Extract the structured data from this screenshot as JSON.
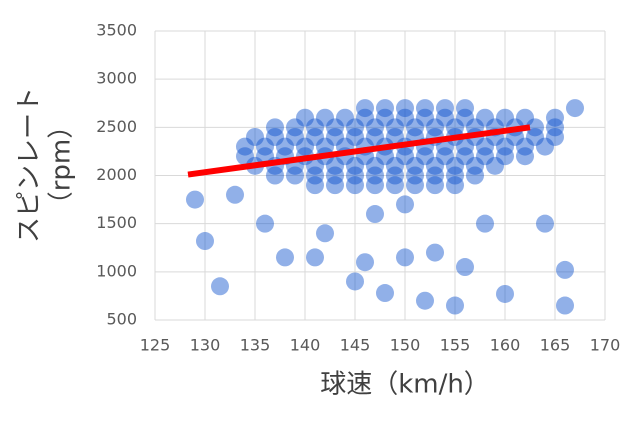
{
  "chart_data": {
    "type": "scatter",
    "x_label": "球速（km/h）",
    "y_label": [
      "スピンレート",
      "（rpm）"
    ],
    "xlim": [
      125,
      170
    ],
    "xticks": [
      125,
      130,
      135,
      140,
      145,
      150,
      155,
      160,
      165,
      170
    ],
    "ylim": [
      500,
      3500
    ],
    "yticks": [
      500,
      1000,
      1500,
      2000,
      2500,
      3000,
      3500
    ],
    "grid": true,
    "color": "#0a4fcc",
    "x": [
      146,
      148,
      150,
      152,
      154,
      156,
      140,
      142,
      144,
      146,
      148,
      150,
      152,
      154,
      156,
      158,
      160,
      162,
      137,
      139,
      141,
      143,
      145,
      147,
      149,
      151,
      153,
      155,
      157,
      159,
      161,
      163,
      165,
      135,
      137,
      139,
      141,
      143,
      145,
      147,
      149,
      151,
      153,
      155,
      157,
      159,
      161,
      163,
      165,
      134,
      136,
      138,
      140,
      142,
      144,
      146,
      148,
      150,
      152,
      154,
      156,
      158,
      160,
      162,
      164,
      134,
      136,
      138,
      140,
      142,
      144,
      146,
      148,
      150,
      152,
      154,
      156,
      158,
      160,
      162,
      135,
      137,
      139,
      141,
      143,
      145,
      147,
      149,
      151,
      153,
      155,
      157,
      159,
      137,
      139,
      141,
      143,
      145,
      147,
      149,
      151,
      153,
      155,
      157,
      141,
      143,
      145,
      147,
      149,
      151,
      153,
      155,
      130,
      131.5,
      138,
      141,
      146,
      150,
      153,
      156,
      148,
      152,
      145,
      160,
      166,
      166,
      155,
      133,
      129,
      136,
      142,
      158,
      167,
      165,
      164,
      150,
      147
    ],
    "values": [
      2700,
      2700,
      2700,
      2700,
      2700,
      2700,
      2600,
      2600,
      2600,
      2600,
      2600,
      2600,
      2600,
      2600,
      2600,
      2600,
      2600,
      2600,
      2500,
      2500,
      2500,
      2500,
      2500,
      2500,
      2500,
      2500,
      2500,
      2500,
      2500,
      2500,
      2500,
      2500,
      2500,
      2400,
      2400,
      2400,
      2400,
      2400,
      2400,
      2400,
      2400,
      2400,
      2400,
      2400,
      2400,
      2400,
      2400,
      2400,
      2400,
      2300,
      2300,
      2300,
      2300,
      2300,
      2300,
      2300,
      2300,
      2300,
      2300,
      2300,
      2300,
      2300,
      2300,
      2300,
      2300,
      2200,
      2200,
      2200,
      2200,
      2200,
      2200,
      2200,
      2200,
      2200,
      2200,
      2200,
      2200,
      2200,
      2200,
      2200,
      2100,
      2100,
      2100,
      2100,
      2100,
      2100,
      2100,
      2100,
      2100,
      2100,
      2100,
      2100,
      2100,
      2000,
      2000,
      2000,
      2000,
      2000,
      2000,
      2000,
      2000,
      2000,
      2000,
      2000,
      1900,
      1900,
      1900,
      1900,
      1900,
      1900,
      1900,
      1900,
      1320,
      850,
      1150,
      1150,
      1100,
      1150,
      1200,
      1050,
      780,
      700,
      900,
      770,
      1020,
      650,
      650,
      1800,
      1750,
      1500,
      1400,
      1500,
      2700,
      2600,
      1500,
      1700,
      1600
    ],
    "trendline": {
      "x": [
        128.3,
        162.5
      ],
      "values": [
        2010,
        2500
      ],
      "color": "#ff0000"
    }
  }
}
